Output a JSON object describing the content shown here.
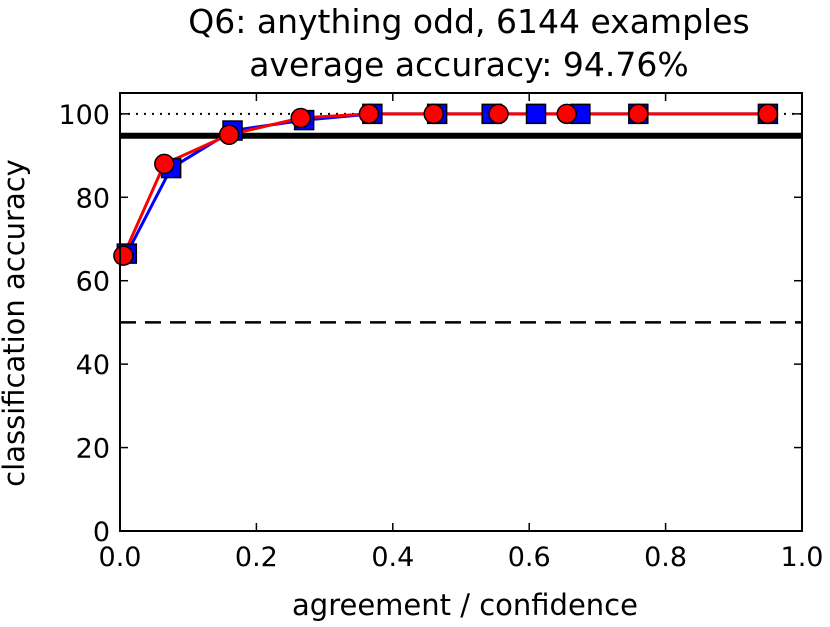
{
  "chart_data": {
    "type": "line",
    "title": "Q6: anything odd, 6144 examples",
    "subtitle": "average accuracy: 94.76%",
    "xlabel": "agreement / confidence",
    "ylabel": "classification accuracy",
    "xlim": [
      0.0,
      1.0
    ],
    "ylim": [
      0,
      105
    ],
    "xticks": [
      "0.0",
      "0.2",
      "0.4",
      "0.6",
      "0.8",
      "1.0"
    ],
    "yticks": [
      "0",
      "20",
      "40",
      "60",
      "80",
      "100"
    ],
    "grid": false,
    "reference_lines": [
      {
        "y": 100,
        "style": "dotted"
      },
      {
        "y": 94.76,
        "style": "solid-thick"
      },
      {
        "y": 50,
        "style": "dashed"
      }
    ],
    "series": [
      {
        "marker": "square",
        "color": "#0000ff",
        "x": [
          0.01,
          0.075,
          0.165,
          0.27,
          0.37,
          0.465,
          0.545,
          0.61,
          0.675,
          0.76,
          0.95
        ],
        "y": [
          66.5,
          87,
          96,
          98.5,
          100,
          100,
          100,
          100,
          100,
          100,
          100
        ]
      },
      {
        "marker": "circle",
        "color": "#ff0000",
        "x": [
          0.005,
          0.065,
          0.16,
          0.265,
          0.365,
          0.46,
          0.555,
          0.655,
          0.76,
          0.95
        ],
        "y": [
          66,
          88,
          95,
          99,
          100,
          100,
          100,
          100,
          100,
          100
        ]
      }
    ]
  }
}
